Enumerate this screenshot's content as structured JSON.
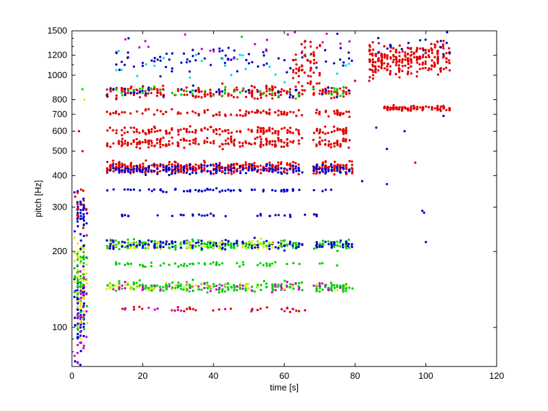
{
  "chart_data": {
    "type": "scatter",
    "title": "",
    "xlabel": "time [s]",
    "ylabel": "pitch [Hz]",
    "xlim": [
      0,
      120
    ],
    "ylim": [
      70,
      1500
    ],
    "yscale": "log",
    "grid": false,
    "xticks": [
      0,
      20,
      40,
      60,
      80,
      100,
      120
    ],
    "yticks": [
      100,
      200,
      300,
      400,
      500,
      600,
      700,
      800,
      1000,
      1200,
      1500
    ],
    "colors": {
      "red": "#e00000",
      "blue": "#0000cc",
      "green": "#00d000",
      "yellow": "#e8e800",
      "magenta": "#cc00cc",
      "cyan": "#00e0e0"
    },
    "bands": [
      {
        "t0": 10,
        "t1": 79,
        "hz": 860,
        "spread": 0.035,
        "n": 230,
        "color": "red",
        "gaps": [
          [
            65,
            68
          ]
        ]
      },
      {
        "t0": 10,
        "t1": 79,
        "hz": 860,
        "spread": 0.03,
        "n": 60,
        "color": "green",
        "gaps": [
          [
            65,
            68
          ]
        ]
      },
      {
        "t0": 10,
        "t1": 79,
        "hz": 860,
        "spread": 0.03,
        "n": 40,
        "color": "blue",
        "gaps": [
          [
            65,
            68
          ]
        ]
      },
      {
        "t0": 10,
        "t1": 79,
        "hz": 710,
        "spread": 0.02,
        "n": 120,
        "color": "red",
        "gaps": [
          [
            65,
            68
          ]
        ]
      },
      {
        "t0": 10,
        "t1": 79,
        "hz": 600,
        "spread": 0.025,
        "n": 160,
        "color": "red",
        "gaps": [
          [
            65,
            68
          ]
        ]
      },
      {
        "t0": 10,
        "t1": 79,
        "hz": 540,
        "spread": 0.03,
        "n": 220,
        "color": "red",
        "gaps": [
          [
            65,
            68
          ]
        ]
      },
      {
        "t0": 10,
        "t1": 79,
        "hz": 430,
        "spread": 0.035,
        "n": 420,
        "color": "red",
        "gaps": [
          [
            65,
            68
          ]
        ]
      },
      {
        "t0": 10,
        "t1": 79,
        "hz": 425,
        "spread": 0.03,
        "n": 220,
        "color": "blue",
        "gaps": [
          [
            65,
            68
          ]
        ]
      },
      {
        "t0": 10,
        "t1": 75,
        "hz": 350,
        "spread": 0.01,
        "n": 70,
        "color": "blue",
        "gaps": [
          [
            65,
            68
          ]
        ]
      },
      {
        "t0": 13,
        "t1": 70,
        "hz": 278,
        "spread": 0.008,
        "n": 40,
        "color": "blue",
        "gaps": [
          [
            46,
            52
          ]
        ]
      },
      {
        "t0": 10,
        "t1": 79,
        "hz": 213,
        "spread": 0.03,
        "n": 230,
        "color": "green",
        "gaps": [
          [
            65,
            68
          ]
        ]
      },
      {
        "t0": 10,
        "t1": 79,
        "hz": 213,
        "spread": 0.03,
        "n": 150,
        "color": "blue",
        "gaps": [
          [
            65,
            68
          ]
        ]
      },
      {
        "t0": 10,
        "t1": 60,
        "hz": 213,
        "spread": 0.03,
        "n": 50,
        "color": "yellow",
        "gaps": []
      },
      {
        "t0": 10,
        "t1": 75,
        "hz": 178,
        "spread": 0.015,
        "n": 60,
        "color": "green",
        "gaps": [
          [
            65,
            68
          ]
        ]
      },
      {
        "t0": 10,
        "t1": 79,
        "hz": 145,
        "spread": 0.03,
        "n": 220,
        "color": "green",
        "gaps": [
          [
            65,
            68
          ]
        ]
      },
      {
        "t0": 10,
        "t1": 79,
        "hz": 145,
        "spread": 0.03,
        "n": 60,
        "color": "magenta",
        "gaps": [
          [
            65,
            68
          ]
        ]
      },
      {
        "t0": 10,
        "t1": 79,
        "hz": 145,
        "spread": 0.03,
        "n": 40,
        "color": "yellow",
        "gaps": [
          [
            65,
            68
          ]
        ]
      },
      {
        "t0": 12,
        "t1": 72,
        "hz": 118,
        "spread": 0.015,
        "n": 30,
        "color": "red",
        "gaps": []
      },
      {
        "t0": 12,
        "t1": 72,
        "hz": 118,
        "spread": 0.015,
        "n": 12,
        "color": "magenta",
        "gaps": []
      },
      {
        "t0": 12,
        "t1": 79,
        "hz": 1150,
        "spread": 0.08,
        "n": 80,
        "color": "blue",
        "gaps": []
      },
      {
        "t0": 12,
        "t1": 79,
        "hz": 1100,
        "spread": 0.08,
        "n": 25,
        "color": "cyan",
        "gaps": []
      },
      {
        "t0": 12,
        "t1": 79,
        "hz": 1300,
        "spread": 0.06,
        "n": 15,
        "color": "magenta",
        "gaps": []
      },
      {
        "t0": 62,
        "t1": 70,
        "hz": 1100,
        "spread": 0.15,
        "n": 60,
        "color": "red",
        "gaps": []
      },
      {
        "t0": 84,
        "t1": 107,
        "hz": 1150,
        "spread": 0.1,
        "n": 260,
        "color": "red",
        "gaps": []
      },
      {
        "t0": 88,
        "t1": 107,
        "hz": 740,
        "spread": 0.015,
        "n": 90,
        "color": "red",
        "gaps": []
      },
      {
        "t0": 84,
        "t1": 107,
        "hz": 1300,
        "spread": 0.06,
        "n": 15,
        "color": "blue",
        "gaps": []
      },
      {
        "t0": 1,
        "t1": 4,
        "hz": 120,
        "spread": 0.3,
        "n": 90,
        "color": "blue",
        "gaps": []
      },
      {
        "t0": 1,
        "t1": 4,
        "hz": 150,
        "spread": 0.3,
        "n": 60,
        "color": "yellow",
        "gaps": []
      },
      {
        "t0": 1,
        "t1": 4,
        "hz": 150,
        "spread": 0.3,
        "n": 40,
        "color": "green",
        "gaps": []
      },
      {
        "t0": 1,
        "t1": 4,
        "hz": 270,
        "spread": 0.15,
        "n": 40,
        "color": "blue",
        "gaps": []
      },
      {
        "t0": 1,
        "t1": 4,
        "hz": 110,
        "spread": 0.3,
        "n": 25,
        "color": "magenta",
        "gaps": []
      },
      {
        "t0": 1,
        "t1": 4,
        "hz": 300,
        "spread": 0.15,
        "n": 15,
        "color": "red",
        "gaps": []
      }
    ],
    "outliers": [
      {
        "t": 2,
        "hz": 600,
        "color": "red"
      },
      {
        "t": 3,
        "hz": 500,
        "color": "red"
      },
      {
        "t": 3,
        "hz": 880,
        "color": "green"
      },
      {
        "t": 3.5,
        "hz": 800,
        "color": "yellow"
      },
      {
        "t": 16,
        "hz": 1400,
        "color": "blue"
      },
      {
        "t": 32,
        "hz": 1450,
        "color": "magenta"
      },
      {
        "t": 48,
        "hz": 1420,
        "color": "green"
      },
      {
        "t": 61,
        "hz": 1450,
        "color": "magenta"
      },
      {
        "t": 63,
        "hz": 1480,
        "color": "magenta"
      },
      {
        "t": 72,
        "hz": 1460,
        "color": "magenta"
      },
      {
        "t": 75,
        "hz": 1460,
        "color": "blue"
      },
      {
        "t": 80,
        "hz": 950,
        "color": "red"
      },
      {
        "t": 82,
        "hz": 380,
        "color": "blue"
      },
      {
        "t": 84,
        "hz": 950,
        "color": "red"
      },
      {
        "t": 86,
        "hz": 620,
        "color": "blue"
      },
      {
        "t": 89,
        "hz": 510,
        "color": "blue"
      },
      {
        "t": 89,
        "hz": 370,
        "color": "blue"
      },
      {
        "t": 94,
        "hz": 600,
        "color": "blue"
      },
      {
        "t": 97,
        "hz": 450,
        "color": "red"
      },
      {
        "t": 99,
        "hz": 290,
        "color": "blue"
      },
      {
        "t": 99.5,
        "hz": 285,
        "color": "blue"
      },
      {
        "t": 100,
        "hz": 218,
        "color": "blue"
      },
      {
        "t": 105,
        "hz": 690,
        "color": "blue"
      },
      {
        "t": 106,
        "hz": 1480,
        "color": "blue"
      },
      {
        "t": 78,
        "hz": 210,
        "color": "blue"
      }
    ]
  }
}
